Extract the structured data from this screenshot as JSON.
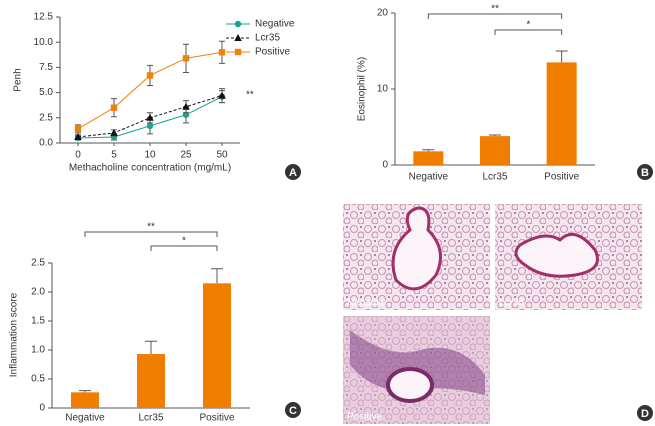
{
  "chart_data": [
    {
      "type": "line",
      "panel": "A",
      "ylabel": "Penh",
      "xlabel": "Methacholine concentration (mg/mL)",
      "categories": [
        "0",
        "5",
        "10",
        "25",
        "50"
      ],
      "ylim": [
        0,
        12.5
      ],
      "yticks": [
        {
          "value": 0,
          "label": "0.0"
        },
        2.5,
        {
          "value": 5,
          "label": "5.0"
        },
        7.5,
        {
          "value": 10,
          "label": "10.0"
        },
        12.5
      ],
      "annotations": [
        "**"
      ],
      "series": [
        {
          "name": "Negative",
          "color": "#1aa38f",
          "marker": "circle",
          "line_style": "solid",
          "values": [
            0.5,
            0.6,
            1.7,
            2.8,
            4.6
          ],
          "errors": [
            0.2,
            0.3,
            0.8,
            0.8,
            0.6
          ]
        },
        {
          "name": "Lcr35",
          "color": "#111111",
          "marker": "triangle",
          "line_style": "dashed",
          "values": [
            0.6,
            1.0,
            2.5,
            3.6,
            4.7
          ],
          "errors": [
            0.2,
            0.3,
            0.5,
            0.6,
            0.7
          ]
        },
        {
          "name": "Positive",
          "color": "#f0820a",
          "marker": "square",
          "line_style": "solid",
          "values": [
            1.4,
            3.5,
            6.7,
            8.4,
            9.0
          ],
          "errors": [
            0.4,
            0.9,
            1.0,
            1.4,
            1.1
          ]
        }
      ]
    },
    {
      "type": "bar",
      "panel": "B",
      "ylabel": "Eosinophil (%)",
      "color": "#f07d00",
      "categories": [
        "Negative",
        "Lcr35",
        "Positive"
      ],
      "values": [
        1.8,
        3.8,
        13.5
      ],
      "errors": [
        0.2,
        0.15,
        1.5
      ],
      "ylim": [
        0,
        20
      ],
      "yticks": [
        0,
        10,
        20
      ],
      "annotations": [
        "**",
        "*"
      ]
    },
    {
      "type": "bar",
      "panel": "C",
      "ylabel": "Inflammation score",
      "color": "#f07d00",
      "categories": [
        "Negative",
        "Lcr35",
        "Positive"
      ],
      "values": [
        0.27,
        0.93,
        2.15
      ],
      "errors": [
        0.03,
        0.22,
        0.25
      ],
      "ylim": [
        0,
        2.5
      ],
      "yticks": [
        0,
        0.5,
        {
          "value": 1,
          "label": "1.0"
        },
        1.5,
        {
          "value": 2,
          "label": "2.0"
        },
        2.5
      ],
      "annotations": [
        "**",
        "*"
      ]
    }
  ],
  "panel_d": {
    "panel": "D",
    "captions": [
      "Negative",
      "Lcr35",
      "Positive"
    ]
  }
}
